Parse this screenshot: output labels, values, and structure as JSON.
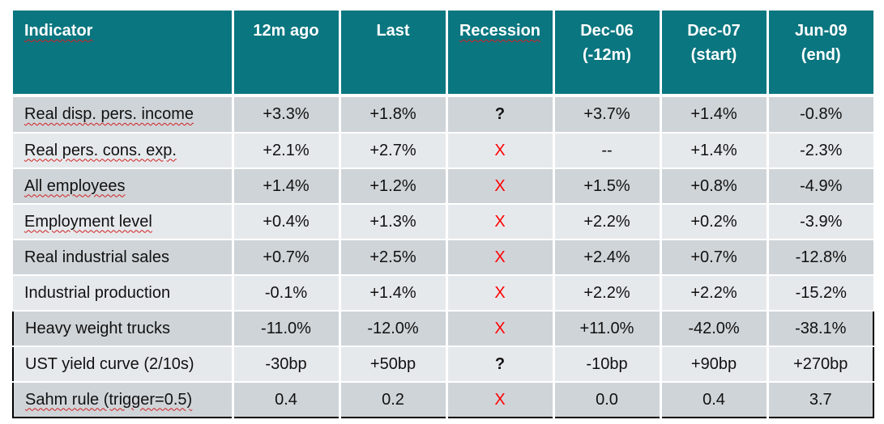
{
  "headers": [
    {
      "line1": "Indicator",
      "line2": ""
    },
    {
      "line1": "12m ago",
      "line2": ""
    },
    {
      "line1": "Last",
      "line2": ""
    },
    {
      "line1": "Recession",
      "line2": ""
    },
    {
      "line1": "Dec-06",
      "line2": "(-12m)"
    },
    {
      "line1": "Dec-07",
      "line2": "(start)"
    },
    {
      "line1": "Jun-09",
      "line2": "(end)"
    }
  ],
  "rows": [
    {
      "indicator": "Real disp. pers. income",
      "ago12m": "+3.3%",
      "last": "+1.8%",
      "recession": "?",
      "dec06": "+3.7%",
      "dec07": "+1.4%",
      "jun09": "-0.8%"
    },
    {
      "indicator": "Real pers. cons. exp.",
      "ago12m": "+2.1%",
      "last": "+2.7%",
      "recession": "X",
      "dec06": "--",
      "dec07": "+1.4%",
      "jun09": "-2.3%"
    },
    {
      "indicator": "All employees",
      "ago12m": "+1.4%",
      "last": "+1.2%",
      "recession": "X",
      "dec06": "+1.5%",
      "dec07": "+0.8%",
      "jun09": "-4.9%"
    },
    {
      "indicator": "Employment level",
      "ago12m": "+0.4%",
      "last": "+1.3%",
      "recession": "X",
      "dec06": "+2.2%",
      "dec07": "+0.2%",
      "jun09": "-3.9%"
    },
    {
      "indicator": "Real industrial sales",
      "ago12m": "+0.7%",
      "last": "+2.5%",
      "recession": "X",
      "dec06": "+2.4%",
      "dec07": "+0.7%",
      "jun09": "-12.8%"
    },
    {
      "indicator": "Industrial production",
      "ago12m": "-0.1%",
      "last": "+1.4%",
      "recession": "X",
      "dec06": "+2.2%",
      "dec07": "+2.2%",
      "jun09": "-15.2%"
    },
    {
      "indicator": "Heavy weight trucks",
      "ago12m": "-11.0%",
      "last": "-12.0%",
      "recession": "X",
      "dec06": "+11.0%",
      "dec07": "-42.0%",
      "jun09": "-38.1%"
    },
    {
      "indicator": "UST yield curve (2/10s)",
      "ago12m": "-30bp",
      "last": "+50bp",
      "recession": "?",
      "dec06": "-10bp",
      "dec07": "+90bp",
      "jun09": "+270bp"
    },
    {
      "indicator": "Sahm rule (trigger=0.5)",
      "ago12m": "0.4",
      "last": "0.2",
      "recession": "X",
      "dec06": "0.0",
      "dec07": "0.4",
      "jun09": "3.7"
    }
  ],
  "colors": {
    "header_bg": "#0a7680",
    "row_dark": "#cfd4d8",
    "row_light": "#e6e9ec",
    "x_mark": "#ff0000"
  }
}
